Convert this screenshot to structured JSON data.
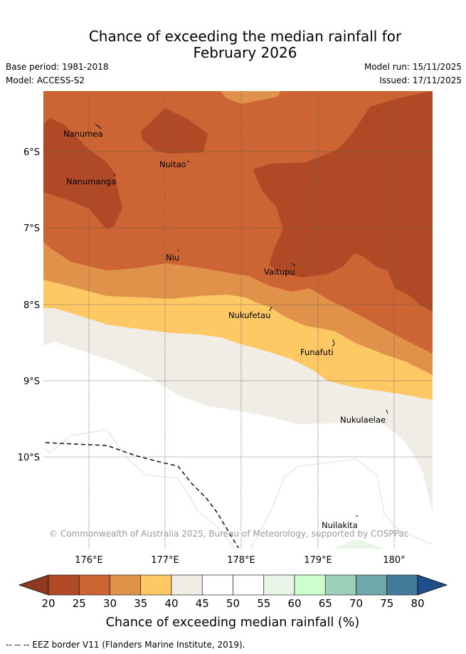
{
  "title_line1": "Chance of exceeding the median rainfall for",
  "title_line2": "February 2026",
  "base_period": "Base period: 1981-2018",
  "model": "Model: ACCESS-S2",
  "model_run": "Model run: 15/11/2025",
  "issued": "Issued: 17/11/2025",
  "copyright": "© Commonwealth of Australia 2025, Bureau of Meteorology, supported by COSPPac",
  "lat_labels": [
    "6°S",
    "7°S",
    "8°S",
    "9°S",
    "10°S"
  ],
  "lon_labels": [
    "176°E",
    "177°E",
    "178°E",
    "179°E",
    "180°"
  ],
  "places": [
    "Nanumea",
    "Nuitao",
    "Nanumanga",
    "Niu",
    "Vaitupu",
    "Nukufetau",
    "Funafuti",
    "Nukulaelae",
    "Nuilakita"
  ],
  "colorbar": {
    "ticks": [
      "20",
      "25",
      "30",
      "35",
      "40",
      "45",
      "50",
      "55",
      "60",
      "65",
      "70",
      "75",
      "80"
    ],
    "colors": [
      "#b04a26",
      "#cc6433",
      "#e0914a",
      "#fec965",
      "#f0ece6",
      "#ffffff",
      "#ffffff",
      "#e8f5e8",
      "#ccffcc",
      "#9dd0ba",
      "#6fa8ab",
      "#437b9b"
    ],
    "low_color": "#8e3a1e",
    "high_color": "#1e4f8a",
    "label": "Chance of exceeding median rainfall (%)"
  },
  "legend_text": "--  --  -- EEZ border V11 (Flanders Marine Institute, 2019)."
}
